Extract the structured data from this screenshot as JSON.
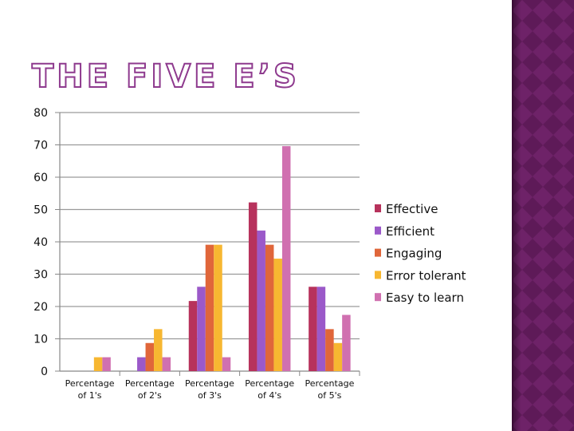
{
  "slide": {
    "title": "THE FIVE E’S",
    "title_color": "#8e3a8e",
    "sidebar_colors": [
      "#3a0c35",
      "#5e1a58",
      "#6e2268"
    ]
  },
  "chart_data": {
    "type": "bar",
    "title": "",
    "xlabel": "",
    "ylabel": "",
    "ylim": [
      0,
      80
    ],
    "yticks": [
      0,
      10,
      20,
      30,
      40,
      50,
      60,
      70,
      80
    ],
    "grid": true,
    "legend_position": "right",
    "categories": [
      [
        "Percentage",
        "of 1's"
      ],
      [
        "Percentage",
        "of 2's"
      ],
      [
        "Percentage",
        "of 3's"
      ],
      [
        "Percentage",
        "of 4's"
      ],
      [
        "Percentage",
        "of 5's"
      ]
    ],
    "series": [
      {
        "name": "Effective",
        "color": "#b7325c",
        "values": [
          0,
          0,
          21.7,
          52.2,
          26.1
        ]
      },
      {
        "name": "Efficient",
        "color": "#9b59c9",
        "values": [
          0,
          4.3,
          26.1,
          43.5,
          26.1
        ]
      },
      {
        "name": "Engaging",
        "color": "#e0663a",
        "values": [
          0,
          8.7,
          39.1,
          39.1,
          13.0
        ]
      },
      {
        "name": "Error tolerant",
        "color": "#f7b731",
        "values": [
          4.3,
          13.0,
          39.1,
          34.8,
          8.7
        ]
      },
      {
        "name": "Easy to learn",
        "color": "#d070b0",
        "values": [
          4.3,
          4.3,
          4.3,
          69.6,
          17.4
        ]
      }
    ]
  }
}
